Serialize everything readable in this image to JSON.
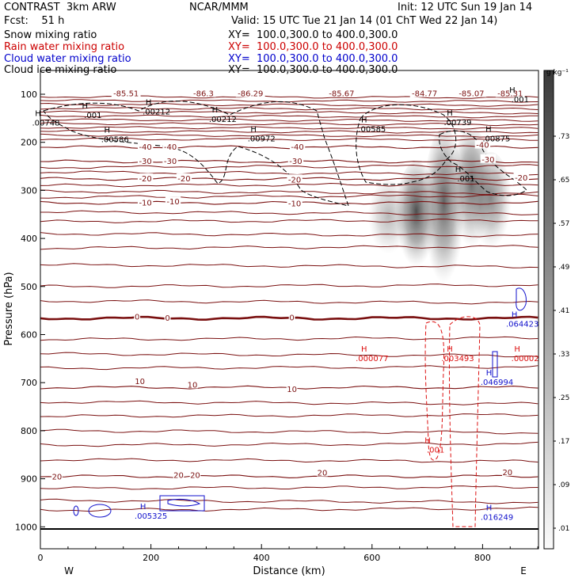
{
  "header": {
    "model": "CONTRAST  3km ARW",
    "org": "NCAR/MMM",
    "init": "Init: 12 UTC Sun 19 Jan 14",
    "fcst": "Fcst:    51 h",
    "valid": "Valid: 15 UTC Tue 21 Jan 14 (01 ChT Wed 22 Jan 14)",
    "fields": [
      {
        "name": "Snow mixing ratio",
        "xy": "XY=  100.0,300.0 to 400.0,300.0",
        "color": "#000000"
      },
      {
        "name": "Rain water mixing ratio",
        "xy": "XY=  100.0,300.0 to 400.0,300.0",
        "color": "#cc0000"
      },
      {
        "name": "Cloud water mixing ratio",
        "xy": "XY=  100.0,300.0 to 400.0,300.0",
        "color": "#0000cc"
      },
      {
        "name": "Cloud ice mixing ratio",
        "xy": "XY=  100.0,300.0 to 400.0,300.0",
        "color": "#000000"
      }
    ]
  },
  "chart_data": {
    "type": "cross-section",
    "xlabel": "Distance (km)",
    "ylabel": "Pressure (hPa)",
    "xlim": [
      0,
      900
    ],
    "ylim": [
      1050,
      50
    ],
    "x_ticks": [
      0,
      200,
      400,
      600,
      800
    ],
    "y_ticks": [
      100,
      200,
      300,
      400,
      500,
      600,
      700,
      800,
      900,
      1000
    ],
    "left_end": "W",
    "right_end": "E",
    "colorbar": {
      "unit": "g kg⁻¹",
      "labels": [
        ".01",
        ".09",
        ".17",
        ".25",
        ".33",
        ".41",
        ".49",
        ".57",
        ".65",
        ".73"
      ]
    },
    "colors": {
      "temperature": "#7a1010",
      "rain": "#dd1111",
      "cloud_water": "#1111cc",
      "snow": "#000000"
    },
    "temperature_contours": [
      {
        "value": -40,
        "p": 210
      },
      {
        "value": -30,
        "p": 240
      },
      {
        "value": -20,
        "p": 276
      },
      {
        "value": -10,
        "p": 326
      },
      {
        "value": 0,
        "p": 566
      },
      {
        "value": 10,
        "p": 710
      },
      {
        "value": 20,
        "p": 895
      }
    ],
    "temperature_labels": [
      {
        "text": "-85.51",
        "x": 155,
        "p": 101
      },
      {
        "text": "-86.3",
        "x": 295,
        "p": 101
      },
      {
        "text": "-86.29",
        "x": 380,
        "p": 101
      },
      {
        "text": "-85.67",
        "x": 545,
        "p": 101
      },
      {
        "text": "-84.77",
        "x": 695,
        "p": 101
      },
      {
        "text": "-85.07",
        "x": 780,
        "p": 101
      },
      {
        "text": "-85.31",
        "x": 850,
        "p": 101
      },
      {
        "text": "-40",
        "x": 190,
        "p": 212
      },
      {
        "text": "-40",
        "x": 235,
        "p": 212
      },
      {
        "text": "-40",
        "x": 465,
        "p": 212
      },
      {
        "text": "-40",
        "x": 800,
        "p": 208
      },
      {
        "text": "-30",
        "x": 190,
        "p": 242
      },
      {
        "text": "-30",
        "x": 235,
        "p": 242
      },
      {
        "text": "-30",
        "x": 462,
        "p": 242
      },
      {
        "text": "-30",
        "x": 810,
        "p": 238
      },
      {
        "text": "-20",
        "x": 190,
        "p": 278
      },
      {
        "text": "-20",
        "x": 260,
        "p": 278
      },
      {
        "text": "-20",
        "x": 460,
        "p": 280
      },
      {
        "text": "-20",
        "x": 870,
        "p": 276
      },
      {
        "text": "-10",
        "x": 190,
        "p": 328
      },
      {
        "text": "-10",
        "x": 240,
        "p": 326
      },
      {
        "text": "-10",
        "x": 460,
        "p": 330
      },
      {
        "text": "0",
        "x": 175,
        "p": 565
      },
      {
        "text": "0",
        "x": 230,
        "p": 568
      },
      {
        "text": "0",
        "x": 455,
        "p": 567
      },
      {
        "text": "10",
        "x": 180,
        "p": 700
      },
      {
        "text": "10",
        "x": 275,
        "p": 707
      },
      {
        "text": "10",
        "x": 455,
        "p": 716
      },
      {
        "text": "20",
        "x": 30,
        "p": 898
      },
      {
        "text": "20",
        "x": 250,
        "p": 895
      },
      {
        "text": "20",
        "x": 280,
        "p": 895
      },
      {
        "text": "20",
        "x": 510,
        "p": 890
      },
      {
        "text": "20",
        "x": 845,
        "p": 889
      }
    ],
    "maxima_labels": [
      {
        "text": ".00748",
        "x": 10,
        "p": 162,
        "series": "snow"
      },
      {
        "text": ".001",
        "x": 95,
        "p": 146,
        "series": "snow"
      },
      {
        "text": ".00212",
        "x": 210,
        "p": 139,
        "series": "snow"
      },
      {
        "text": ".00212",
        "x": 330,
        "p": 154,
        "series": "snow"
      },
      {
        "text": ".00586",
        "x": 135,
        "p": 196,
        "series": "snow"
      },
      {
        "text": ".00972",
        "x": 400,
        "p": 195,
        "series": "snow"
      },
      {
        "text": ".00585",
        "x": 600,
        "p": 175,
        "series": "snow"
      },
      {
        "text": ".00739",
        "x": 755,
        "p": 161,
        "series": "snow"
      },
      {
        "text": ".00875",
        "x": 825,
        "p": 195,
        "series": "snow"
      },
      {
        "text": ".001",
        "x": 770,
        "p": 278,
        "series": "snow"
      },
      {
        "text": ".001",
        "x": 868,
        "p": 113,
        "series": "snow"
      },
      {
        "text": ".000077",
        "x": 600,
        "p": 652,
        "series": "rain"
      },
      {
        "text": ".003493",
        "x": 755,
        "p": 652,
        "series": "rain"
      },
      {
        "text": ".00002",
        "x": 877,
        "p": 652,
        "series": "rain"
      },
      {
        "text": ".001",
        "x": 715,
        "p": 842,
        "series": "rain"
      },
      {
        "text": ".064423",
        "x": 872,
        "p": 580,
        "series": "cloud"
      },
      {
        "text": ".046994",
        "x": 826,
        "p": 701,
        "series": "cloud"
      },
      {
        "text": ".016249",
        "x": 826,
        "p": 982,
        "series": "cloud"
      },
      {
        "text": ".005325",
        "x": 200,
        "p": 980,
        "series": "cloud"
      }
    ],
    "shading_plumes": [
      {
        "x": 680,
        "p_top": 240,
        "p_bot": 470,
        "value": 0.73
      },
      {
        "x": 730,
        "p_top": 170,
        "p_bot": 510,
        "value": 0.65
      },
      {
        "x": 780,
        "p_top": 170,
        "p_bot": 430,
        "value": 0.6
      },
      {
        "x": 815,
        "p_top": 220,
        "p_bot": 430,
        "value": 0.5
      },
      {
        "x": 630,
        "p_top": 280,
        "p_bot": 440,
        "value": 0.3
      }
    ]
  }
}
